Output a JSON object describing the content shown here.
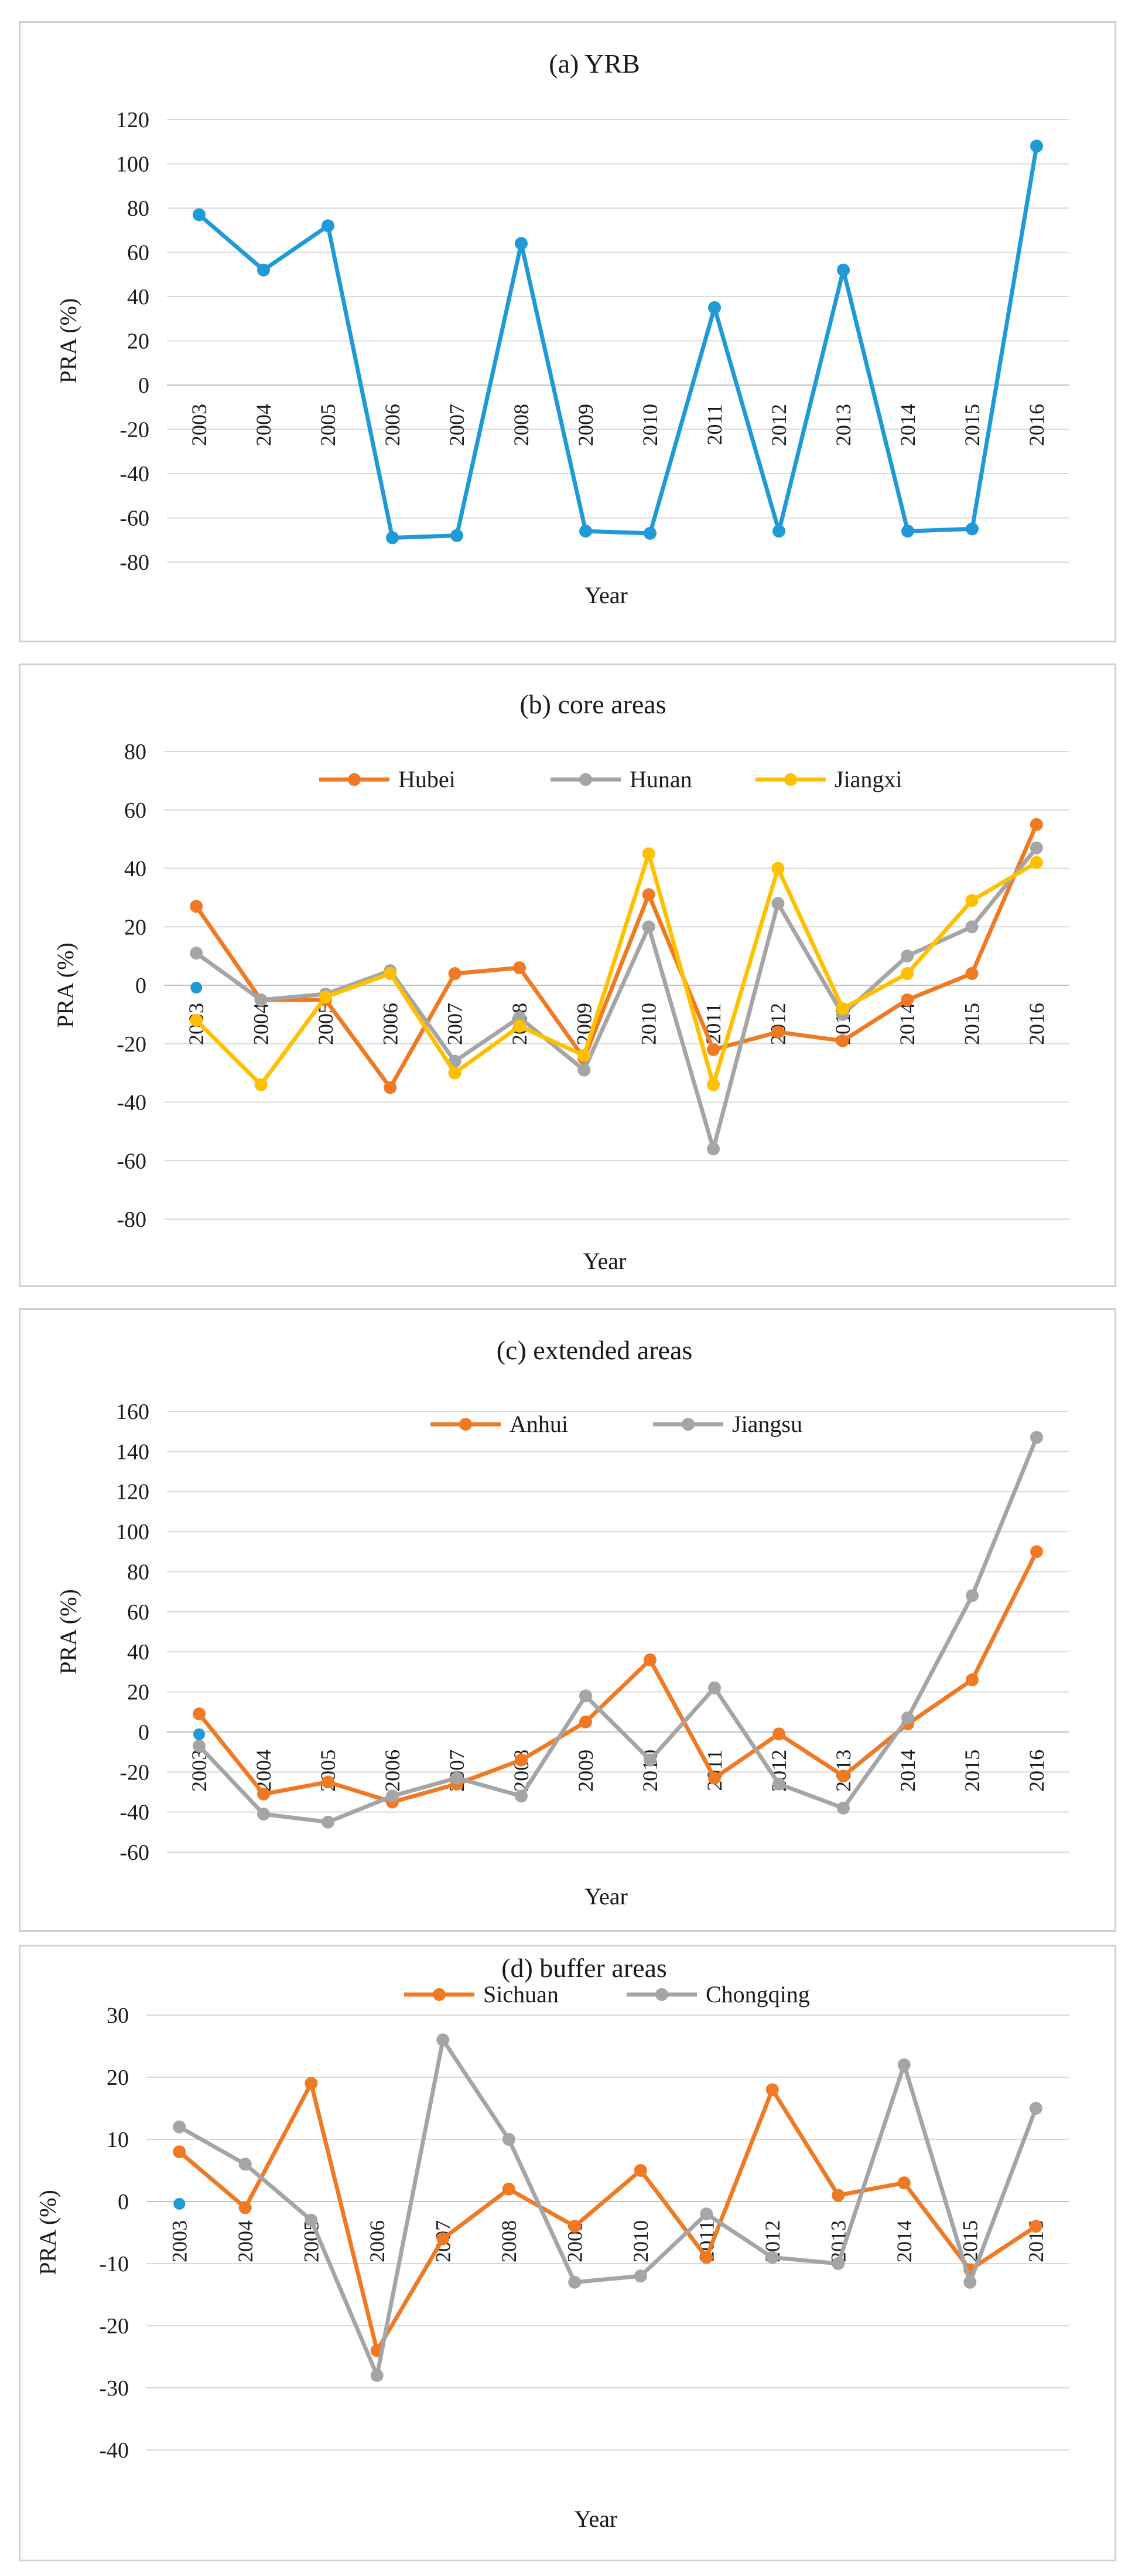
{
  "chart_data": [
    {
      "type": "line",
      "title": "(a)  YRB",
      "xlabel": "Year",
      "ylabel": "PRA (%)",
      "ylim": [
        -80,
        120
      ],
      "ystep": 20,
      "categories": [
        "2003",
        "2004",
        "2005",
        "2006",
        "2007",
        "2008",
        "2009",
        "2010",
        "2011",
        "2012",
        "2013",
        "2014",
        "2015",
        "2016"
      ],
      "legend": "none",
      "series": [
        {
          "name": "YRB",
          "color": "#1f9ad6",
          "values": [
            77,
            52,
            72,
            -69,
            -68,
            64,
            -66,
            -67,
            35,
            -66,
            52,
            -66,
            -65,
            108
          ]
        }
      ]
    },
    {
      "type": "line",
      "title": "(b) core areas",
      "xlabel": "Year",
      "ylabel": "PRA (%)",
      "ylim": [
        -80,
        80
      ],
      "ystep": 20,
      "categories": [
        "2003",
        "2004",
        "2005",
        "2006",
        "2007",
        "2008",
        "2009",
        "2010",
        "2011",
        "2012",
        "2013",
        "2014",
        "2015",
        "2016"
      ],
      "legend": "top",
      "series": [
        {
          "name": "Hubei",
          "color": "#f07a24",
          "values": [
            27,
            -5,
            -5,
            -35,
            4,
            6,
            -25,
            31,
            -22,
            -16,
            -19,
            -5,
            4,
            55
          ]
        },
        {
          "name": "Hunan",
          "color": "#a5a5a5",
          "values": [
            11,
            -5,
            -3,
            5,
            -26,
            -11,
            -29,
            20,
            -56,
            28,
            -10,
            10,
            20,
            47
          ]
        },
        {
          "name": "Jiangxi",
          "color": "#ffc000",
          "values": [
            -12,
            -34,
            -4,
            4,
            -30,
            -14,
            -24,
            45,
            -34,
            40,
            -8,
            4,
            29,
            42
          ]
        }
      ]
    },
    {
      "type": "line",
      "title": "(c) extended areas",
      "xlabel": "Year",
      "ylabel": "PRA (%)",
      "ylim": [
        -60,
        160
      ],
      "ystep": 20,
      "categories": [
        "2003",
        "2004",
        "2005",
        "2006",
        "2007",
        "2008",
        "2009",
        "2010",
        "2011",
        "2012",
        "2013",
        "2014",
        "2015",
        "2016"
      ],
      "legend": "top",
      "series": [
        {
          "name": "Anhui",
          "color": "#f07a24",
          "values": [
            9,
            -31,
            -25,
            -35,
            -26,
            -14,
            5,
            36,
            -23,
            -1,
            -22,
            4,
            26,
            90
          ]
        },
        {
          "name": "Jiangsu",
          "color": "#a5a5a5",
          "values": [
            -7,
            -41,
            -45,
            -32,
            -23,
            -32,
            18,
            -14,
            22,
            -26,
            -38,
            7,
            68,
            147
          ]
        }
      ]
    },
    {
      "type": "line",
      "title": "(d) buffer areas",
      "xlabel": "Year",
      "ylabel": "PRA (%)",
      "ylim": [
        -40,
        30
      ],
      "ystep": 10,
      "categories": [
        "2003",
        "2004",
        "2005",
        "2006",
        "2007",
        "2008",
        "2009",
        "2010",
        "2011",
        "2012",
        "2013",
        "2014",
        "2015",
        "2016"
      ],
      "legend": "top",
      "series": [
        {
          "name": "Sichuan",
          "color": "#f07a24",
          "values": [
            8,
            -1,
            19,
            -24,
            -6,
            2,
            -4,
            5,
            -9,
            18,
            1,
            3,
            -11,
            -4
          ]
        },
        {
          "name": "Chongqing",
          "color": "#a5a5a5",
          "values": [
            12,
            6,
            -3,
            -28,
            26,
            10,
            -13,
            -12,
            -2,
            -9,
            -10,
            22,
            -13,
            15
          ]
        }
      ]
    }
  ]
}
